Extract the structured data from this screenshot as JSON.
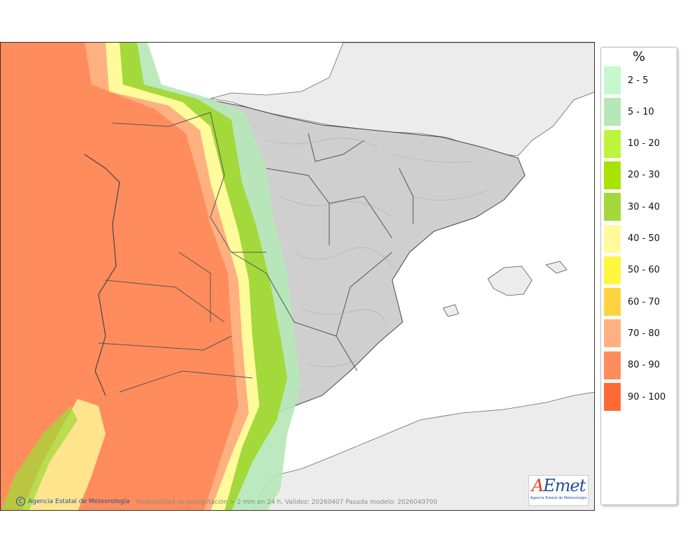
{
  "unit": "%",
  "legend": [
    {
      "label": "2 - 5",
      "color": "#c3f9cd"
    },
    {
      "label": "5 - 10",
      "color": "#b5e8b7"
    },
    {
      "label": "10 - 20",
      "color": "#bcf53a"
    },
    {
      "label": "20 - 30",
      "color": "#a6e400"
    },
    {
      "label": "30 - 40",
      "color": "#a3d93a"
    },
    {
      "label": "40 - 50",
      "color": "#fffa9b"
    },
    {
      "label": "50 - 60",
      "color": "#fff73f"
    },
    {
      "label": "60 - 70",
      "color": "#ffd23f"
    },
    {
      "label": "70 - 80",
      "color": "#ffb080"
    },
    {
      "label": "80 - 90",
      "color": "#ff8c5c"
    },
    {
      "label": "90 - 100",
      "color": "#ff6a34"
    }
  ],
  "footer": {
    "credit": "Agencia Estatal de Meteorología",
    "caption": "Probabilidad de precipitación > 2 mm en 24 h. Validez: 20260407 Pasada modelo: 2026040700"
  },
  "logo": {
    "word_a": "A",
    "word_e": "E",
    "word_rest": "met",
    "subtitle": "Agencia Estatal de Meteorología"
  },
  "colors": {
    "sea": "#ffffff",
    "foreign_land": "#ececec",
    "relief": "#c9c9c9",
    "border": "#555555"
  }
}
